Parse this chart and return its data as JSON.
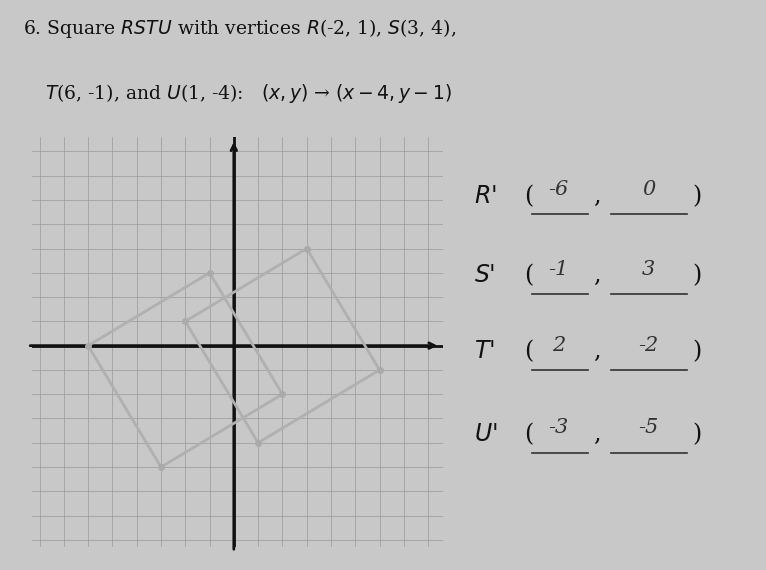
{
  "original_vertices": [
    [
      -2,
      1
    ],
    [
      3,
      4
    ],
    [
      6,
      -1
    ],
    [
      1,
      -4
    ]
  ],
  "translated_vertices": [
    [
      -6,
      0
    ],
    [
      -1,
      3
    ],
    [
      2,
      -2
    ],
    [
      -3,
      -5
    ]
  ],
  "answer_labels": [
    "R'",
    "S'",
    "T'",
    "U'"
  ],
  "answers": [
    [
      -6,
      0
    ],
    [
      -1,
      3
    ],
    [
      2,
      -2
    ],
    [
      -3,
      -5
    ]
  ],
  "grid_color": "#999999",
  "axis_color": "#111111",
  "poly_color": "#b0b0b0",
  "background_color": "#c8c8c8",
  "plot_bg_color": "#dcdcdc",
  "xmin": -8,
  "xmax": 8,
  "ymin": -8,
  "ymax": 8
}
